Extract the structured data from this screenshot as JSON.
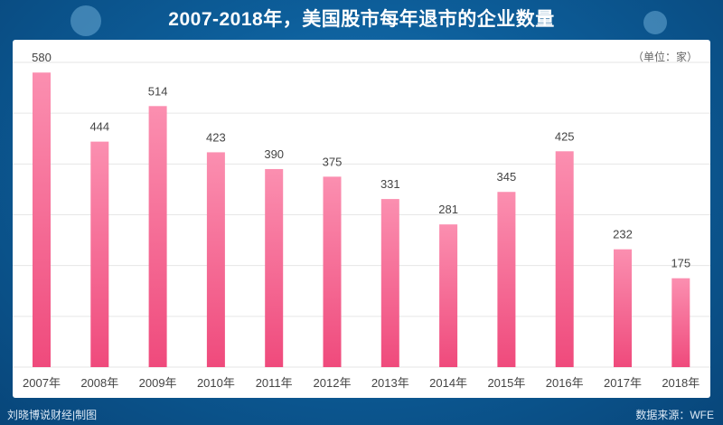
{
  "title": "2007-2018年，美国股市每年退市的企业数量",
  "unit_label": "（单位：家）",
  "footer_left": "刘晓博说财经|制图",
  "footer_right": "数据来源：WFE",
  "colors": {
    "bar_top": "#fb8fb0",
    "bar_bottom": "#ef4a7c",
    "label": "#444444",
    "grid": "#e6e6e6"
  },
  "chart_data": {
    "type": "bar",
    "title": "2007-2018年，美国股市每年退市的企业数量",
    "xlabel": "",
    "ylabel": "",
    "unit": "（单位：家）",
    "categories": [
      "2007年",
      "2008年",
      "2009年",
      "2010年",
      "2011年",
      "2012年",
      "2013年",
      "2014年",
      "2015年",
      "2016年",
      "2017年",
      "2018年"
    ],
    "values": [
      580,
      444,
      514,
      423,
      390,
      375,
      331,
      281,
      345,
      425,
      232,
      175
    ],
    "ylim": [
      0,
      600
    ],
    "grid": true,
    "legend": "none"
  }
}
